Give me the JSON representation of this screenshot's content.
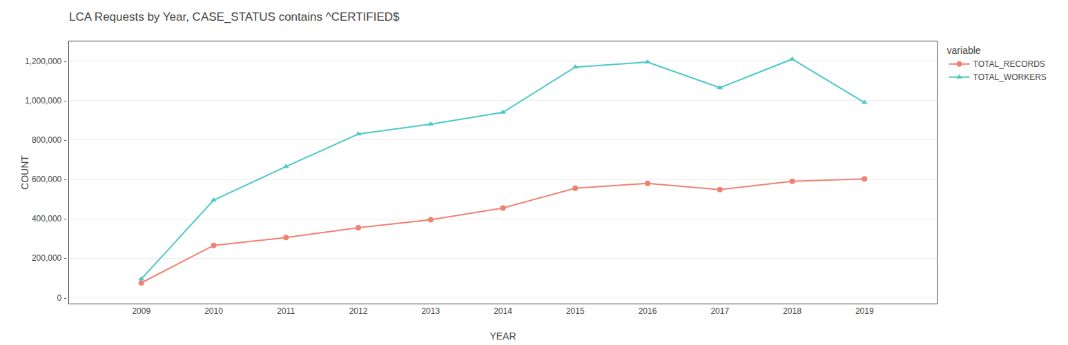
{
  "chart_data": {
    "type": "line",
    "title": "LCA Requests by Year, CASE_STATUS contains ^CERTIFIED$",
    "x_label": "YEAR",
    "y_label": "COUNT",
    "legend_title": "variable",
    "x": [
      2009,
      2010,
      2011,
      2012,
      2013,
      2014,
      2015,
      2016,
      2017,
      2018,
      2019
    ],
    "series": [
      {
        "name": "TOTAL_RECORDS",
        "color": "#F08070",
        "marker": "circle",
        "values": [
          75000,
          265000,
          305000,
          355000,
          395000,
          455000,
          555000,
          580000,
          548000,
          590000,
          603000
        ]
      },
      {
        "name": "TOTAL_WORKERS",
        "color": "#4DC8C8",
        "marker": "triangle-up",
        "values": [
          95000,
          495000,
          665000,
          830000,
          880000,
          940000,
          1170000,
          1195000,
          1065000,
          1210000,
          990000
        ]
      }
    ],
    "xlim": [
      2008,
      2020
    ],
    "xticks": [
      2009,
      2010,
      2011,
      2012,
      2013,
      2014,
      2015,
      2016,
      2017,
      2018,
      2019
    ],
    "ylim": [
      -30000,
      1300000
    ],
    "yticks": [
      {
        "value": 0,
        "label": "0 -"
      },
      {
        "value": 200000,
        "label": "200,000 -"
      },
      {
        "value": 400000,
        "label": "400,000 -"
      },
      {
        "value": 600000,
        "label": "600,000 -"
      },
      {
        "value": 800000,
        "label": "800,000 -"
      },
      {
        "value": 1000000,
        "label": "1,000,000 -"
      },
      {
        "value": 1200000,
        "label": "1,200,000 -"
      }
    ],
    "grid": true,
    "legend": "upper right"
  }
}
